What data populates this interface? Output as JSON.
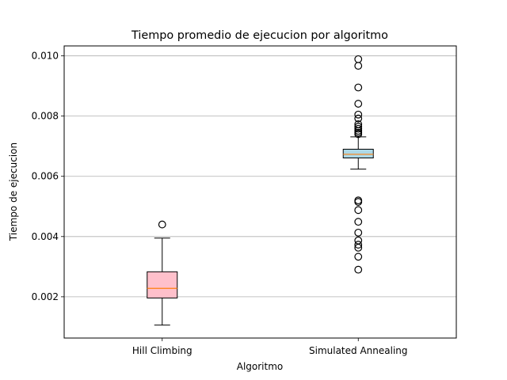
{
  "chart_data": {
    "type": "boxplot",
    "title": "Tiempo promedio de ejecucion por algoritmo",
    "xlabel": "Algoritmo",
    "ylabel": "Tiempo de ejecucion",
    "categories": [
      "Hill Climbing",
      "Simulated Annealing"
    ],
    "ylim": [
      0.00063,
      0.01033
    ],
    "yticks": [
      {
        "value": 0.002,
        "label": "0.002"
      },
      {
        "value": 0.004,
        "label": "0.004"
      },
      {
        "value": 0.006,
        "label": "0.006"
      },
      {
        "value": 0.008,
        "label": "0.008"
      },
      {
        "value": 0.01,
        "label": "0.010"
      }
    ],
    "grid": "y",
    "boxes": [
      {
        "category": "Hill Climbing",
        "color": "#ffc0cb",
        "whisker_low": 0.00106,
        "q1": 0.00196,
        "median": 0.00228,
        "q3": 0.00283,
        "whisker_high": 0.00395,
        "fliers": [
          0.0044
        ]
      },
      {
        "category": "Simulated Annealing",
        "color": "#add8e6",
        "whisker_low": 0.00624,
        "q1": 0.00661,
        "median": 0.00673,
        "q3": 0.0069,
        "whisker_high": 0.00731,
        "fliers": [
          0.00989,
          0.00967,
          0.00895,
          0.00841,
          0.00805,
          0.00792,
          0.00773,
          0.00765,
          0.00758,
          0.00751,
          0.00745,
          0.0074,
          0.0052,
          0.00515,
          0.00488,
          0.00449,
          0.00413,
          0.00387,
          0.00373,
          0.00363,
          0.00333,
          0.0029
        ]
      }
    ],
    "median_color": "#ff7f0e"
  }
}
